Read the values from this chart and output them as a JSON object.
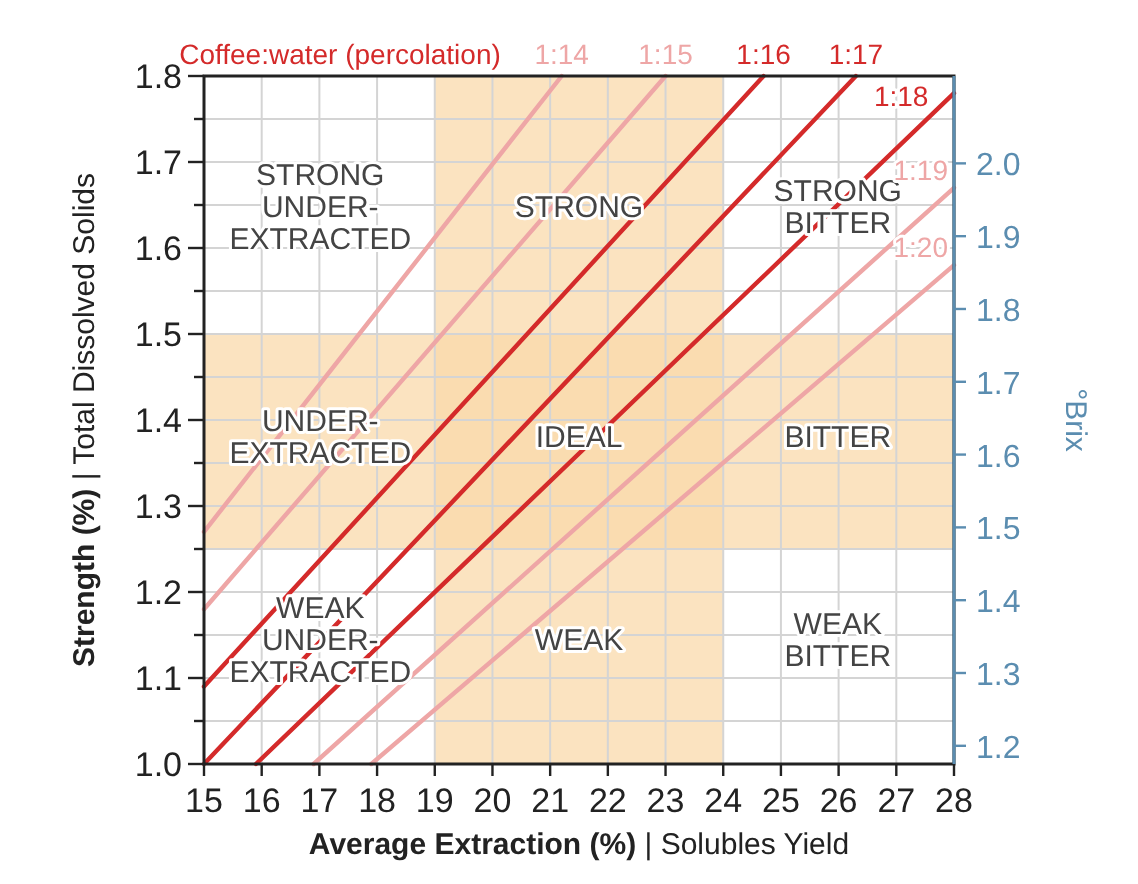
{
  "chart_data": {
    "type": "line",
    "legend_title": "Coffee:water (percolation)",
    "xlabel": "Average Extraction (%) | Solubles Yield",
    "ylabel": "Strength (%) | Total Dissolved Solids",
    "y2label": "°Brix",
    "xlim": [
      15,
      28
    ],
    "xticks": [
      15,
      16,
      17,
      18,
      19,
      20,
      21,
      22,
      23,
      24,
      25,
      26,
      27,
      28
    ],
    "ylim": [
      1.0,
      1.8
    ],
    "yticks": [
      {
        "value": 1,
        "label": "1.0"
      },
      {
        "value": 1.05,
        "label": null
      },
      1.1,
      {
        "value": 1.15,
        "label": null
      },
      1.2,
      {
        "value": 1.25,
        "label": null
      },
      1.3,
      {
        "value": 1.35,
        "label": null
      },
      1.4,
      {
        "value": 1.45,
        "label": null
      },
      1.5,
      {
        "value": 1.55,
        "label": null
      },
      1.6,
      {
        "value": 1.65,
        "label": null
      },
      1.7,
      {
        "value": 1.75,
        "label": null
      },
      1.8
    ],
    "y2lim": [
      1.175,
      2.12
    ],
    "y2ticks": [
      1.2,
      1.3,
      1.4,
      1.5,
      1.6,
      1.7,
      1.8,
      1.9,
      {
        "value": 2,
        "label": "2.0"
      }
    ],
    "grid": true,
    "line_style": "solid",
    "marker": "none",
    "bands": [
      {
        "axis": "x",
        "from": 19,
        "to": 24,
        "color": "#f9d9ab"
      },
      {
        "axis": "y",
        "from": 1.25,
        "to": 1.5,
        "color": "#f9d9ab"
      }
    ],
    "series": [
      {
        "name": "1:14",
        "color": "#eea6a6",
        "x": [
          15,
          21.2
        ],
        "values": [
          1.27,
          1.8
        ]
      },
      {
        "name": "1:15",
        "color": "#eea6a6",
        "x": [
          15,
          23.0
        ],
        "values": [
          1.18,
          1.8
        ]
      },
      {
        "name": "1:16",
        "color": "#d42a2a",
        "x": [
          15,
          24.7
        ],
        "values": [
          1.09,
          1.8
        ]
      },
      {
        "name": "1:17",
        "color": "#d42a2a",
        "x": [
          15,
          26.3
        ],
        "values": [
          1.0,
          1.8
        ]
      },
      {
        "name": "1:18",
        "color": "#d42a2a",
        "x": [
          15.9,
          28
        ],
        "values": [
          1.0,
          1.78
        ]
      },
      {
        "name": "1:19",
        "color": "#eea6a6",
        "x": [
          16.9,
          28
        ],
        "values": [
          1.0,
          1.67
        ]
      },
      {
        "name": "1:20",
        "color": "#eea6a6",
        "x": [
          17.9,
          28
        ],
        "values": [
          1.0,
          1.58
        ]
      }
    ],
    "annotations": [
      "STRONG\nUNDER-\nEXTRACTED",
      "STRONG",
      "STRONG\nBITTER",
      "UNDER-\nEXTRACTED",
      "IDEAL",
      "BITTER",
      "WEAK\nUNDER-\nEXTRACTED",
      "WEAK",
      "WEAK\nBITTER"
    ]
  }
}
